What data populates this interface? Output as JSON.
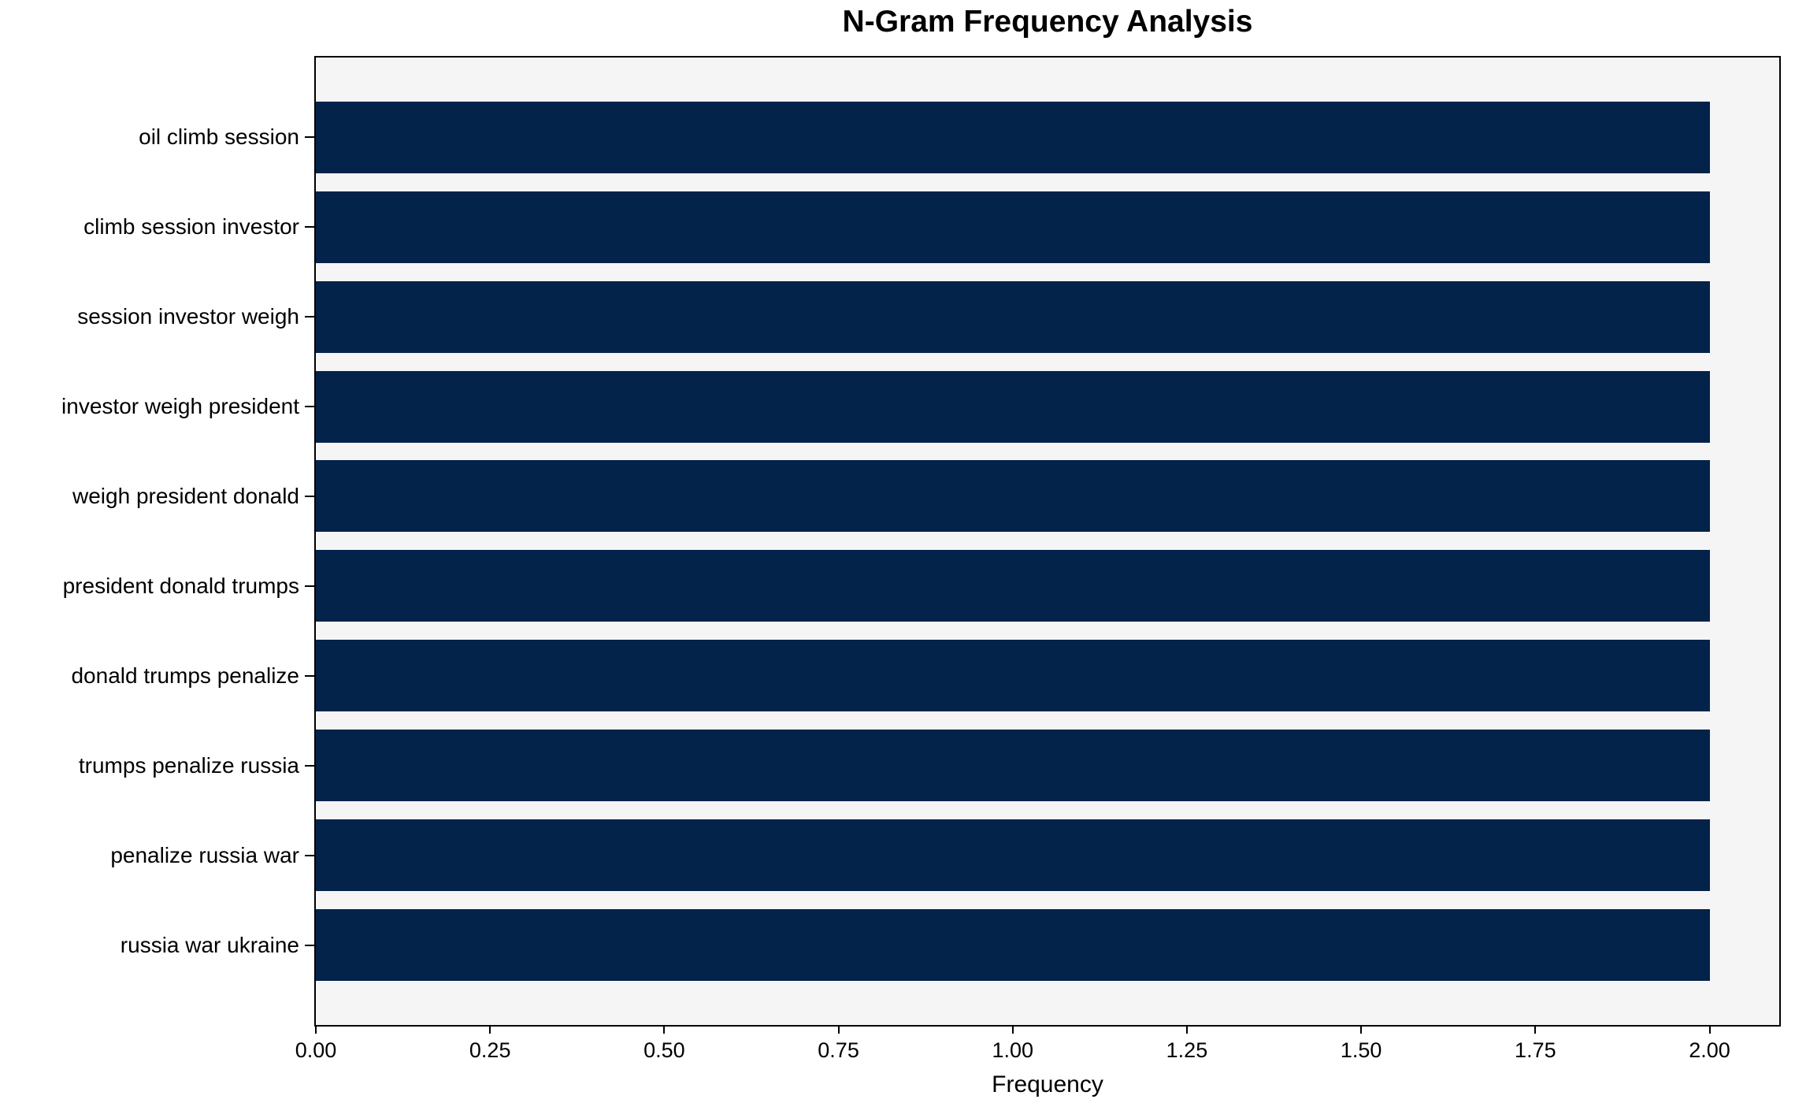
{
  "chart_data": {
    "type": "bar",
    "orientation": "horizontal",
    "title": "N-Gram Frequency Analysis",
    "xlabel": "Frequency",
    "ylabel": "",
    "categories": [
      "oil climb session",
      "climb session investor",
      "session investor weigh",
      "investor weigh president",
      "weigh president donald",
      "president donald trumps",
      "donald trumps penalize",
      "trumps penalize russia",
      "penalize russia war",
      "russia war ukraine"
    ],
    "values": [
      2.0,
      2.0,
      2.0,
      2.0,
      2.0,
      2.0,
      2.0,
      2.0,
      2.0,
      2.0
    ],
    "xlim": [
      0,
      2.1
    ],
    "x_ticks": [
      "0.00",
      "0.25",
      "0.50",
      "0.75",
      "1.00",
      "1.25",
      "1.50",
      "1.75",
      "2.00"
    ],
    "grid": false,
    "legend": "none",
    "colors": {
      "bar": "#04234b",
      "plot_background": "#f5f5f5",
      "figure_background": "#ffffff",
      "spine": "#000000",
      "text": "#000000"
    }
  }
}
